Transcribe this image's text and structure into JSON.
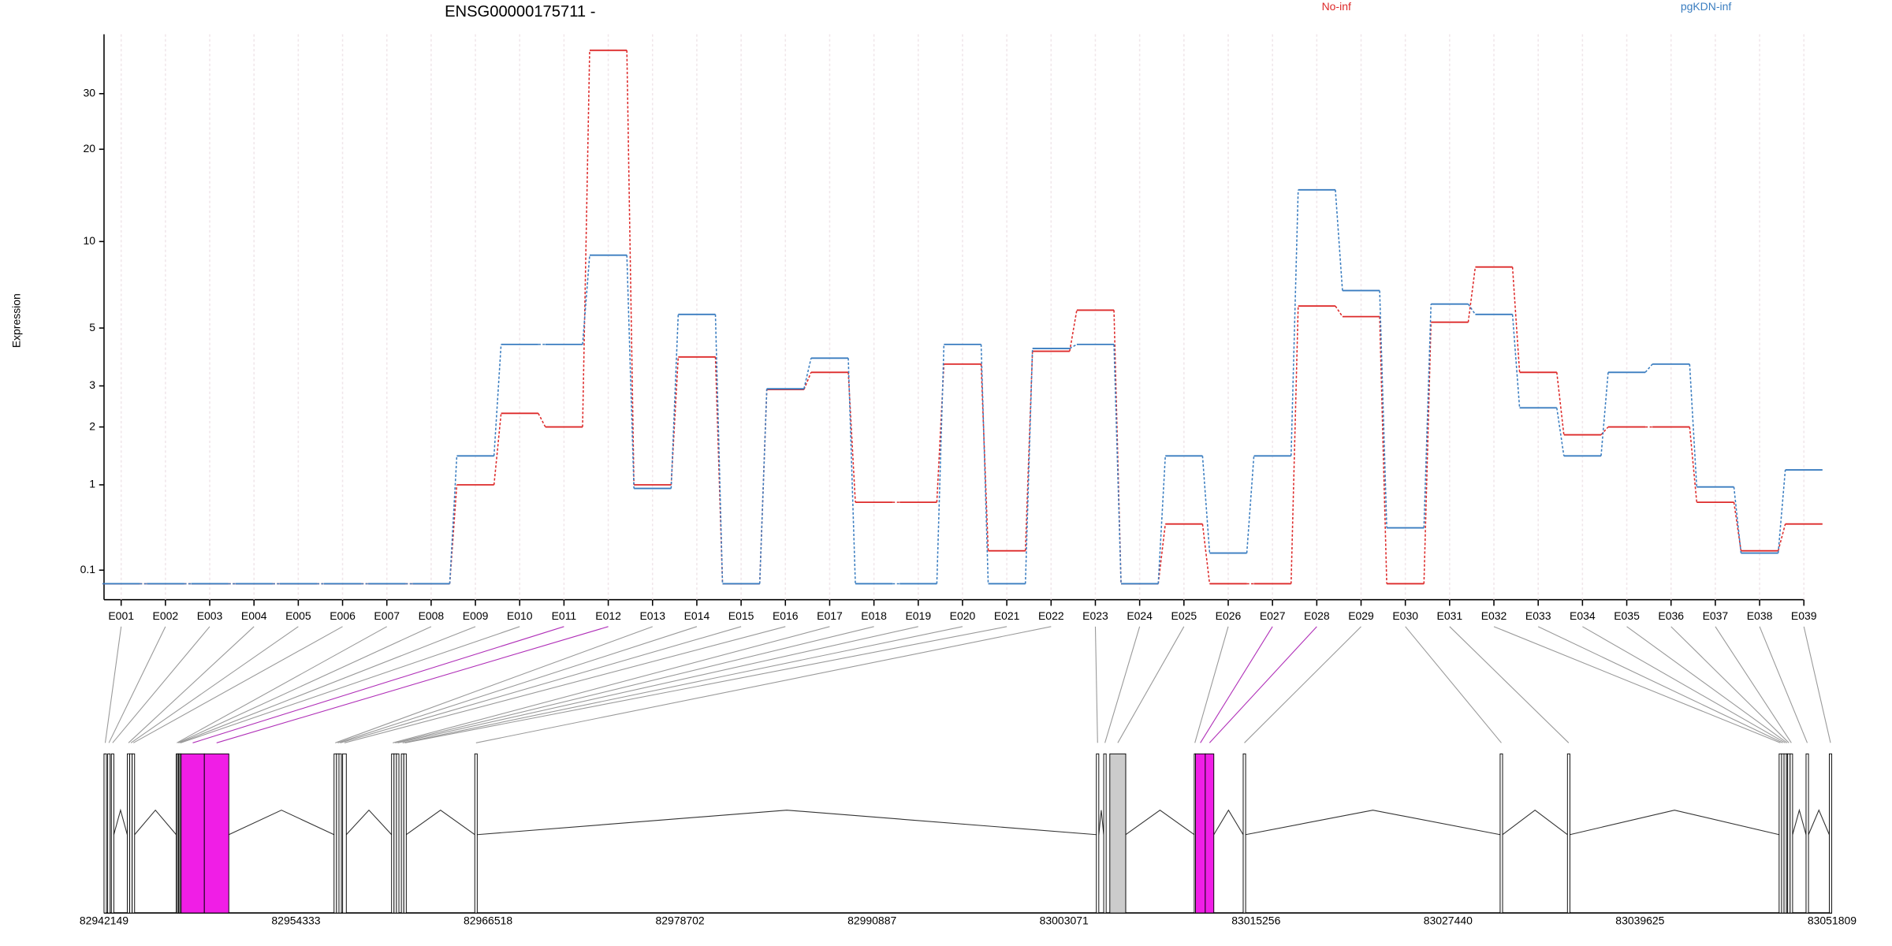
{
  "chart_data": [
    {
      "type": "line",
      "title": "ENSG00000175711 -",
      "ylabel": "Expression",
      "scale": "log1p",
      "grid": true,
      "categories": [
        "E001",
        "E002",
        "E003",
        "E004",
        "E005",
        "E006",
        "E007",
        "E008",
        "E009",
        "E010",
        "E011",
        "E012",
        "E013",
        "E014",
        "E015",
        "E016",
        "E017",
        "E018",
        "E019",
        "E020",
        "E021",
        "E022",
        "E023",
        "E024",
        "E025",
        "E026",
        "E027",
        "E028",
        "E029",
        "E030",
        "E031",
        "E032",
        "E033",
        "E034",
        "E035",
        "E036",
        "E037",
        "E038",
        "E039"
      ],
      "series": [
        {
          "name": "No-inf",
          "color": "#dd2a2a",
          "values": [
            0,
            0,
            0,
            0,
            0,
            0,
            0,
            0,
            1.0,
            2.3,
            2.0,
            41,
            1.0,
            3.9,
            0,
            2.9,
            3.4,
            0.77,
            0.77,
            3.66,
            0.26,
            4.1,
            5.8,
            0,
            0.52,
            0,
            0,
            6.0,
            5.5,
            0,
            5.25,
            8.2,
            3.4,
            1.84,
            2.0,
            2.0,
            0.77,
            0.26,
            0.52
          ]
        },
        {
          "name": "pgKDN-inf",
          "color": "#3a7dc0",
          "values": [
            0,
            0,
            0,
            0,
            0,
            0,
            0,
            0,
            1.45,
            4.35,
            4.35,
            9.0,
            0.95,
            5.6,
            0,
            2.92,
            3.86,
            0,
            0,
            4.35,
            0,
            4.2,
            4.35,
            0,
            1.45,
            0.24,
            1.45,
            14.8,
            6.8,
            0.48,
            6.1,
            5.6,
            2.43,
            1.45,
            3.4,
            3.66,
            0.97,
            0.24,
            1.22
          ]
        }
      ],
      "ylim": [
        0,
        46
      ],
      "yticks": [
        0.1,
        1,
        2,
        3,
        5,
        10,
        20,
        30
      ]
    },
    {
      "type": "gene_model",
      "xlim": [
        82942149,
        83051809
      ],
      "xticks": [
        82942149,
        82954333,
        82966518,
        82978702,
        82990887,
        83003071,
        83015256,
        83027440,
        83039625,
        83051809
      ],
      "exons": {
        "start": [
          82942149,
          82942382,
          82942615,
          82943624,
          82943780,
          82943935,
          82946730,
          82946808,
          82946886,
          82946963,
          82947041,
          82948516,
          82956747,
          82956903,
          82957058,
          82957291,
          82960397,
          82960552,
          82960707,
          82961018,
          82961173,
          82965677,
          83005123,
          83005589,
          83005977,
          83011335,
          83011413,
          83012034,
          83014441,
          83030747,
          83035018,
          83048452,
          83048607,
          83048762,
          83048918,
          83048995,
          83049150,
          83050160,
          83051635
        ],
        "end": [
          82942304,
          82942537,
          82942770,
          82943780,
          82943935,
          82944090,
          82946808,
          82946886,
          82946963,
          82947041,
          82948516,
          82950069,
          82956903,
          82957058,
          82957213,
          82957524,
          82960552,
          82960707,
          82960863,
          82961173,
          82961329,
          82965832,
          83005278,
          83005744,
          83006987,
          83011413,
          83012034,
          83012577,
          83014596,
          83030902,
          83035173,
          83048607,
          83048762,
          83048918,
          83048995,
          83049150,
          83049306,
          83050315,
          83051791
        ],
        "fill": [
          "#ffffff",
          "#ffffff",
          "#ffffff",
          "#ffffff",
          "#ffffff",
          "#ffffff",
          "#ffffff",
          "#ffffff",
          "#ffffff",
          "#ffffff",
          "#f01ee6",
          "#f01ee6",
          "#ffffff",
          "#ffffff",
          "#ffffff",
          "#ffffff",
          "#ffffff",
          "#ffffff",
          "#ffffff",
          "#ffffff",
          "#ffffff",
          "#ffffff",
          "#ffffff",
          "#ffffff",
          "#cccccc",
          "#ffffff",
          "#f01ee6",
          "#f01ee6",
          "#ffffff",
          "#ffffff",
          "#ffffff",
          "#ffffff",
          "#ffffff",
          "#ffffff",
          "#ffffff",
          "#ffffff",
          "#ffffff",
          "#ffffff",
          "#ffffff"
        ]
      }
    }
  ]
}
